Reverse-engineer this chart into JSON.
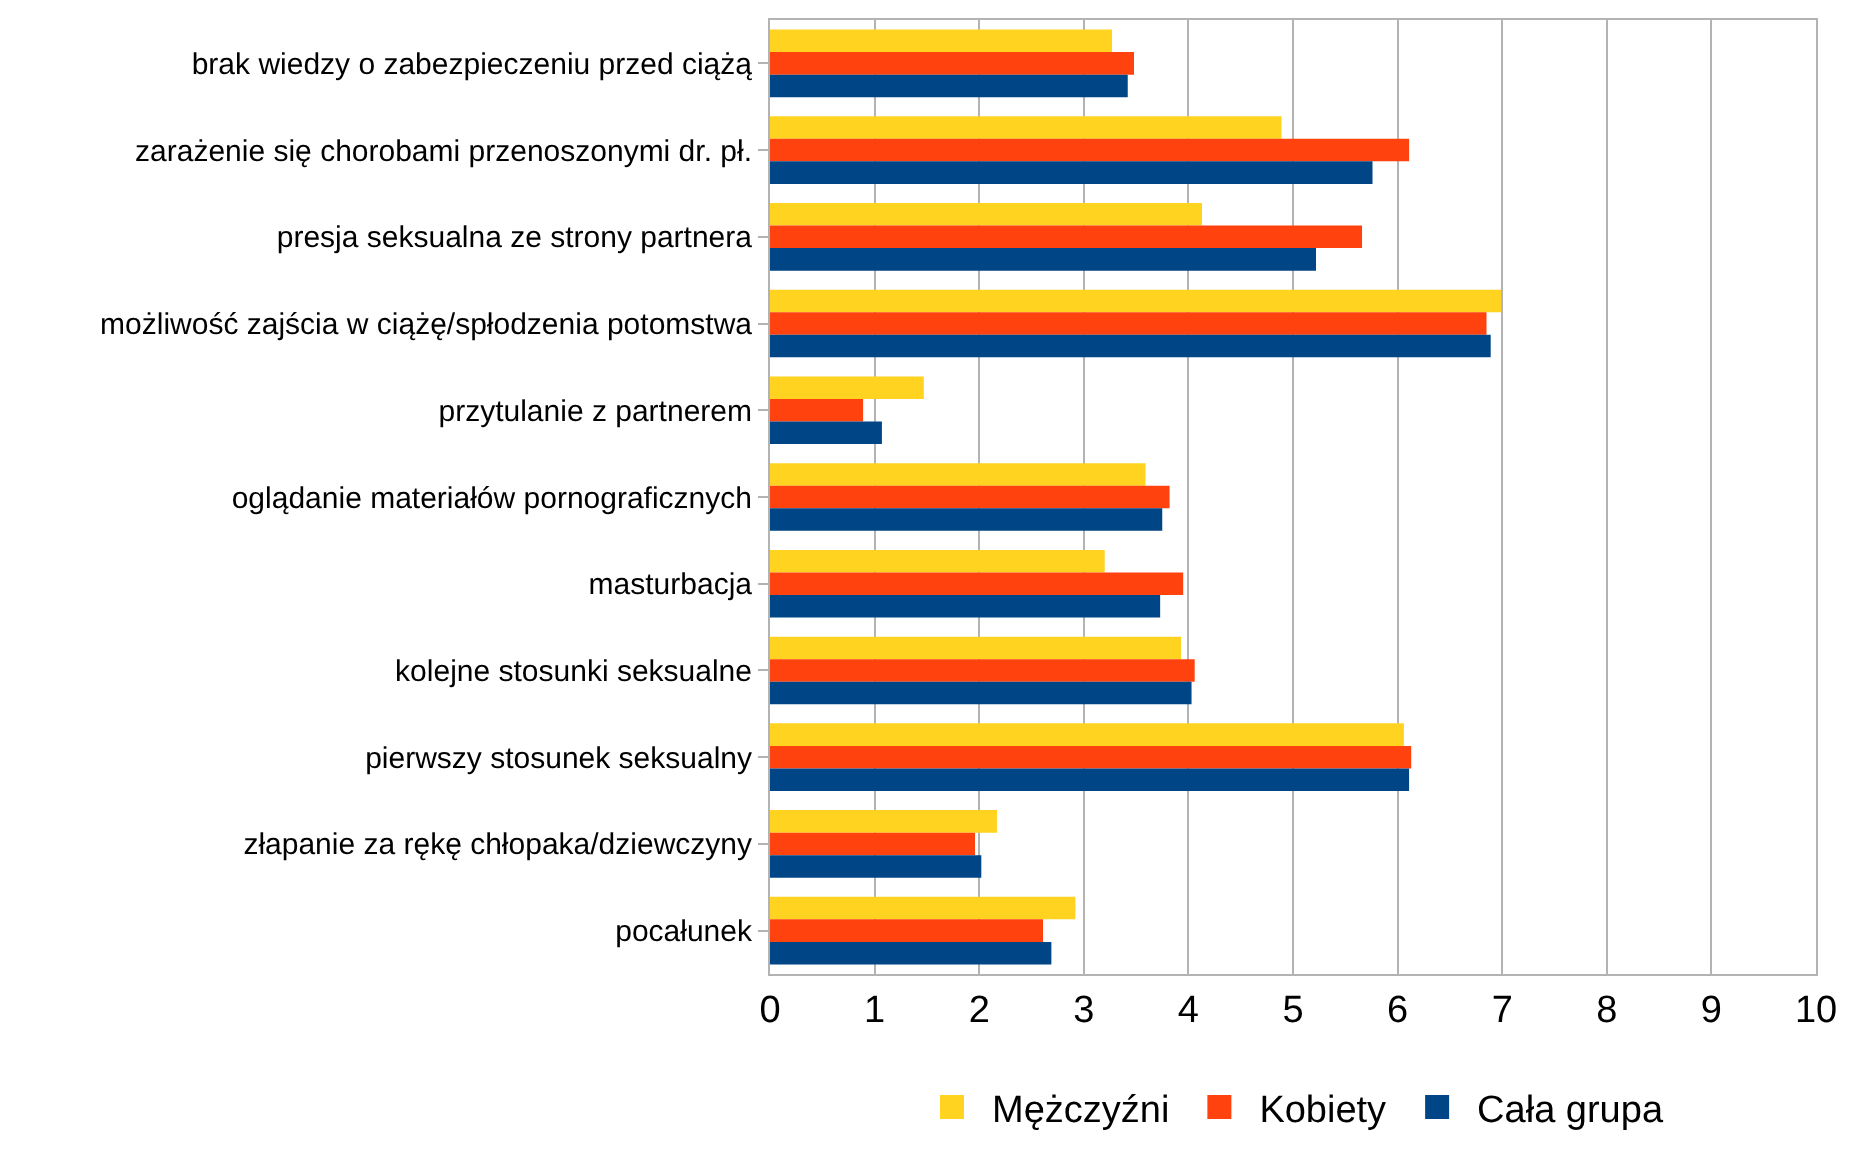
{
  "chart_data": {
    "type": "bar",
    "orientation": "horizontal",
    "categories": [
      "brak wiedzy o zabezpieczeniu przed ciążą",
      "zarażenie się chorobami przenoszonymi dr. pł.",
      "presja seksualna ze strony partnera",
      "możliwość zajścia w ciążę/spłodzenia potomstwa",
      "przytulanie z partnerem",
      "oglądanie materiałów pornograficznych",
      "masturbacja",
      "kolejne stosunki seksualne",
      "pierwszy stosunek seksualny",
      "złapanie za rękę chłopaka/dziewczyny",
      "pocałunek"
    ],
    "series": [
      {
        "name": "Mężczyźni",
        "color": "#ffd320",
        "values": [
          3.27,
          4.89,
          4.13,
          6.99,
          1.47,
          3.59,
          3.2,
          3.93,
          6.06,
          2.17,
          2.92
        ]
      },
      {
        "name": "Kobiety",
        "color": "#ff420e",
        "values": [
          3.48,
          6.11,
          5.66,
          6.85,
          0.89,
          3.82,
          3.95,
          4.06,
          6.13,
          1.96,
          2.61
        ]
      },
      {
        "name": "Cała grupa",
        "color": "#004586",
        "values": [
          3.42,
          5.76,
          5.22,
          6.89,
          1.07,
          3.75,
          3.73,
          4.03,
          6.11,
          2.02,
          2.69
        ]
      }
    ],
    "xlim": [
      0,
      10
    ],
    "xticks": [
      0,
      1,
      2,
      3,
      4,
      5,
      6,
      7,
      8,
      9,
      10
    ],
    "grid": "x",
    "legend": "bottom"
  }
}
